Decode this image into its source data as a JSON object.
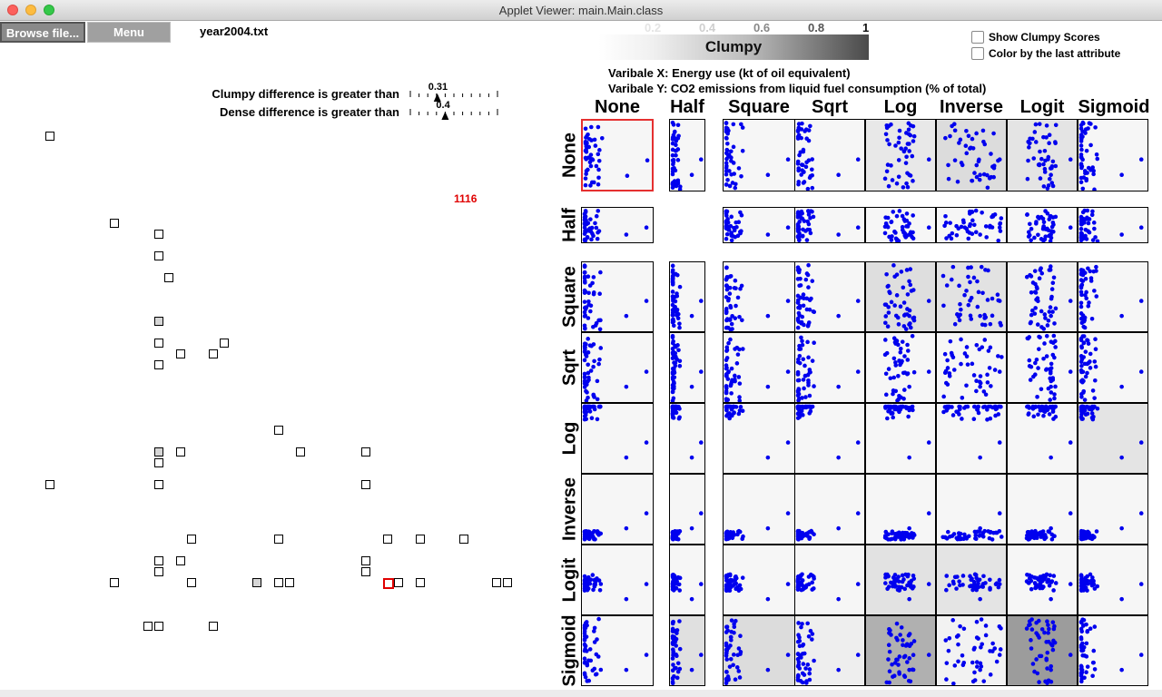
{
  "window": {
    "title": "Applet Viewer: main.Main.class"
  },
  "toolbar": {
    "browse_label": "Browse file...",
    "menu_label": "Menu",
    "filename": "year2004.txt"
  },
  "thresholds": {
    "clumpy_label": "Clumpy difference is greater than",
    "clumpy_value": "0.31",
    "clumpy_level": 0.31,
    "dense_label": "Dense difference is greater than",
    "dense_value": "0.4",
    "dense_level": 0.4
  },
  "count_label": "1116",
  "legend": {
    "ticks": [
      "0.2",
      "0.4",
      "0.6",
      "0.8",
      "1"
    ],
    "title": "Clumpy"
  },
  "options": {
    "show_scores": "Show Clumpy Scores",
    "color_by_last": "Color by the last attribute"
  },
  "variables": {
    "x": "Varibale X: Energy use (kt of oil equivalent)",
    "y": "Varibale Y: CO2 emissions from liquid fuel consumption (% of total)"
  },
  "transforms": [
    "None",
    "Half",
    "Square",
    "Sqrt",
    "Log",
    "Inverse",
    "Logit",
    "Sigmoid"
  ],
  "colors": {
    "point": "#0000ee",
    "selected": "#e53030",
    "count": "#e00000"
  },
  "cell_shades": [
    [
      "#f6f6f6",
      "#f6f6f6",
      "#f6f6f6",
      "#f6f6f6",
      "#e8e8e8",
      "#dcdcdc",
      "#e4e4e4",
      "#f6f6f6"
    ],
    [
      "#f6f6f6",
      "#ffffff",
      "#f6f6f6",
      "#f6f6f6",
      "#f6f6f6",
      "#f6f6f6",
      "#f6f6f6",
      "#f6f6f6"
    ],
    [
      "#f6f6f6",
      "#f6f6f6",
      "#f6f6f6",
      "#f6f6f6",
      "#dedede",
      "#e2e2e2",
      "#f0f0f0",
      "#f6f6f6"
    ],
    [
      "#f6f6f6",
      "#f6f6f6",
      "#f6f6f6",
      "#f6f6f6",
      "#f6f6f6",
      "#f6f6f6",
      "#f6f6f6",
      "#f6f6f6"
    ],
    [
      "#f6f6f6",
      "#f6f6f6",
      "#f6f6f6",
      "#f6f6f6",
      "#f6f6f6",
      "#f6f6f6",
      "#f6f6f6",
      "#e4e4e4"
    ],
    [
      "#f6f6f6",
      "#f6f6f6",
      "#f6f6f6",
      "#f6f6f6",
      "#f6f6f6",
      "#f6f6f6",
      "#f6f6f6",
      "#f6f6f6"
    ],
    [
      "#f6f6f6",
      "#f6f6f6",
      "#f6f6f6",
      "#f6f6f6",
      "#e2e2e2",
      "#e4e4e4",
      "#f6f6f6",
      "#f6f6f6"
    ],
    [
      "#f6f6f6",
      "#e0e0e0",
      "#dcdcdc",
      "#eeeeee",
      "#b0b0b0",
      "#f2f2f2",
      "#9c9c9c",
      "#f6f6f6"
    ]
  ],
  "empty_cells": [
    [
      1,
      1
    ]
  ],
  "selected_cell": [
    0,
    0
  ]
}
